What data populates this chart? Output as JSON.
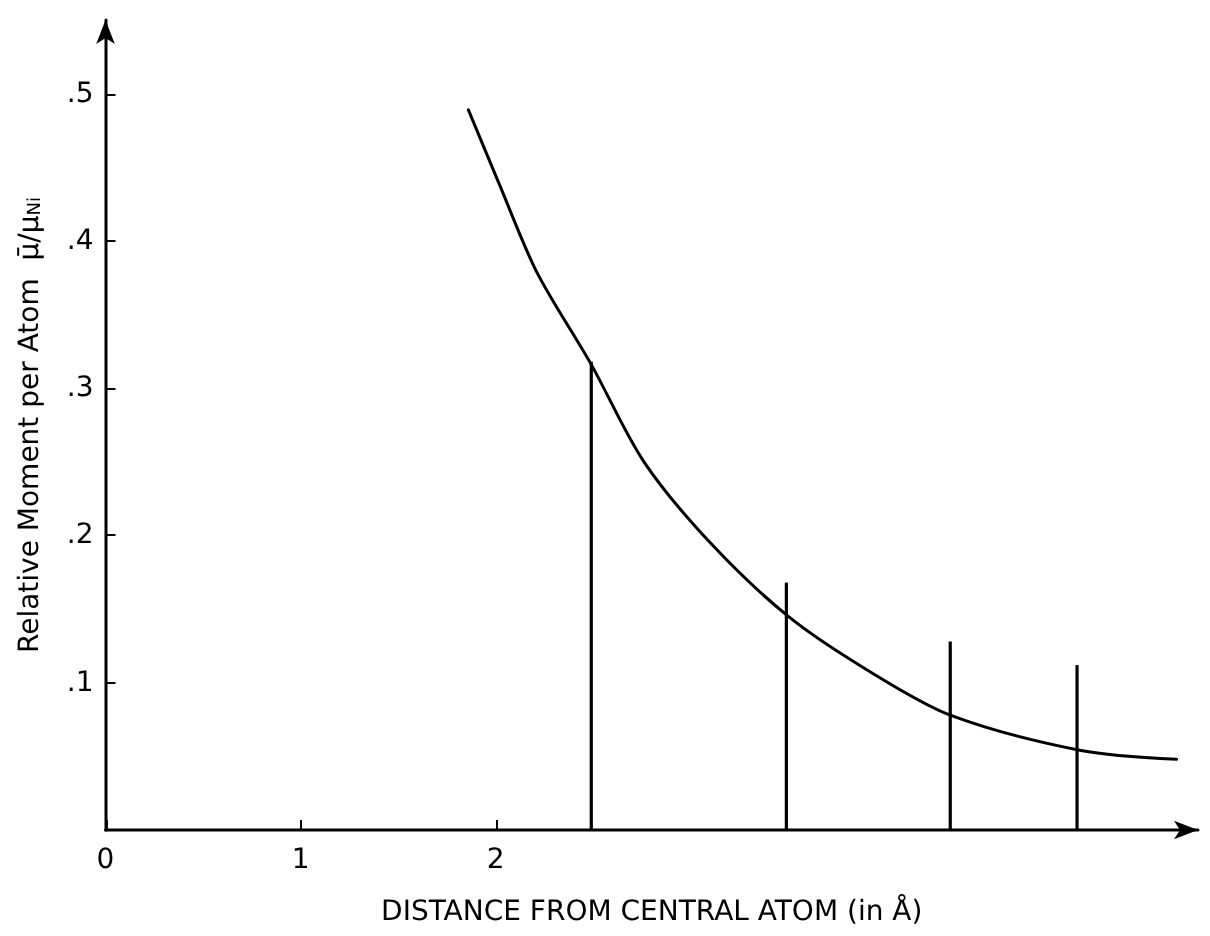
{
  "chart_data": {
    "type": "line",
    "xlabel": "DISTANCE FROM CENTRAL ATOM (in Å)",
    "ylabel": "Relative Moment per Atom  μ̄/μ$_{Ni}$",
    "xlim": [
      0,
      5.6
    ],
    "ylim": [
      0,
      0.55
    ],
    "xticks": [
      0,
      1,
      2
    ],
    "yticks": [
      {
        "value": 0.1,
        "label": ".1"
      },
      {
        "value": 0.2,
        "label": ".2"
      },
      {
        "value": 0.3,
        "label": ".3"
      },
      {
        "value": 0.4,
        "label": ".4"
      },
      {
        "value": 0.5,
        "label": ".5"
      }
    ],
    "grid": false,
    "marker": "none",
    "line_style": "solid",
    "series": [
      {
        "color": "#000000",
        "x": [
          1.86,
          2.02,
          2.21,
          2.49,
          2.76,
          3.1,
          3.5,
          3.9,
          4.33,
          5.0,
          5.49
        ],
        "values": [
          0.489,
          0.438,
          0.379,
          0.316,
          0.25,
          0.195,
          0.145,
          0.109,
          0.078,
          0.054,
          0.048
        ]
      },
      {
        "type": "bar",
        "color": "#000000",
        "x": [
          2.49,
          3.49,
          4.33,
          4.98
        ],
        "values": [
          0.318,
          0.168,
          0.128,
          0.112
        ]
      }
    ]
  }
}
